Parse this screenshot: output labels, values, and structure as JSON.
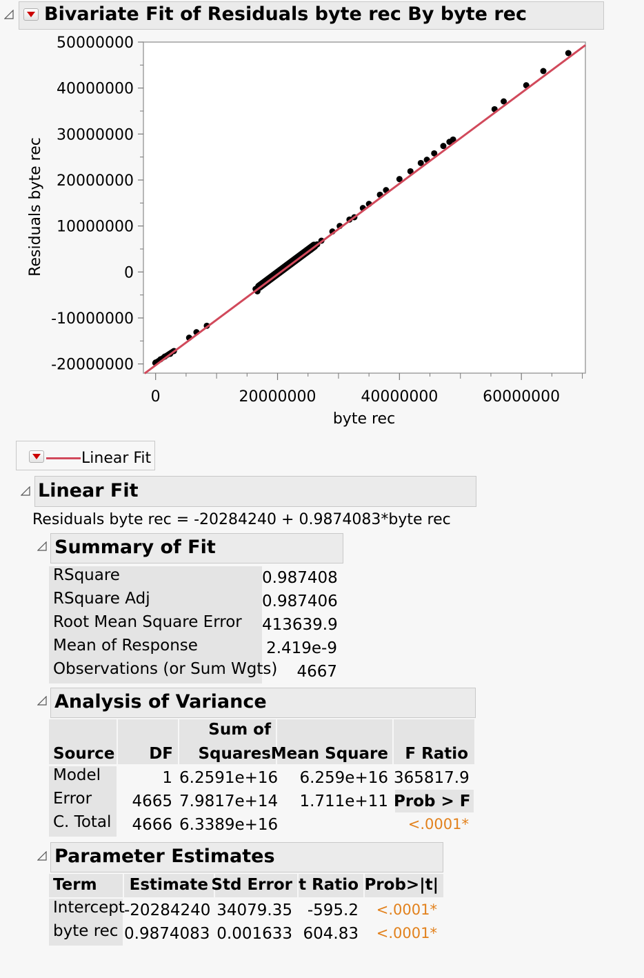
{
  "title": "Bivariate Fit of Residuals byte rec By byte rec",
  "chart_data": {
    "type": "scatter",
    "xlabel": "byte rec",
    "ylabel": "Residuals byte rec",
    "xlim": [
      -2000000,
      70500000
    ],
    "ylim": [
      -22000000,
      50000000
    ],
    "xticks": [
      0,
      20000000,
      40000000,
      60000000
    ],
    "xticklabels": [
      "0",
      "20000000",
      "40000000",
      "60000000"
    ],
    "yticks": [
      -20000000,
      -10000000,
      0,
      10000000,
      20000000,
      30000000,
      40000000,
      50000000
    ],
    "yticklabels": [
      "-20000000",
      "-10000000",
      "0",
      "10000000",
      "20000000",
      "30000000",
      "40000000",
      "50000000"
    ],
    "fit_line": {
      "intercept": -20284240,
      "slope": 0.9874083,
      "color": "#d1495b"
    },
    "points": [
      [
        0,
        -19700000
      ],
      [
        800000,
        -19000000
      ],
      [
        1500000,
        -18400000
      ],
      [
        2400000,
        -17800000
      ],
      [
        3000000,
        -17200000
      ],
      [
        5500000,
        -14300000
      ],
      [
        6700000,
        -13100000
      ],
      [
        8400000,
        -11700000
      ],
      [
        16400000,
        -3700000
      ],
      [
        16700000,
        -4200000
      ],
      [
        17500000,
        -2900000
      ],
      [
        18500000,
        -1900000
      ],
      [
        19500000,
        -800000
      ],
      [
        20500000,
        200000
      ],
      [
        21500000,
        1100000
      ],
      [
        22500000,
        2100000
      ],
      [
        23500000,
        3000000
      ],
      [
        24500000,
        4000000
      ],
      [
        25500000,
        4900000
      ],
      [
        26500000,
        6000000
      ],
      [
        27200000,
        6800000
      ],
      [
        29000000,
        8800000
      ],
      [
        30200000,
        10000000
      ],
      [
        31800000,
        11400000
      ],
      [
        32600000,
        11900000
      ],
      [
        34000000,
        13900000
      ],
      [
        35000000,
        14800000
      ],
      [
        36800000,
        16800000
      ],
      [
        37800000,
        17800000
      ],
      [
        40000000,
        20200000
      ],
      [
        41800000,
        21900000
      ],
      [
        43500000,
        23700000
      ],
      [
        44500000,
        24400000
      ],
      [
        45700000,
        25800000
      ],
      [
        47200000,
        27400000
      ],
      [
        48200000,
        28300000
      ],
      [
        48800000,
        28800000
      ],
      [
        55600000,
        35400000
      ],
      [
        57100000,
        37100000
      ],
      [
        60800000,
        40600000
      ],
      [
        63600000,
        43700000
      ],
      [
        67700000,
        47600000
      ]
    ],
    "dense_segment": {
      "x": [
        17000000,
        26000000
      ],
      "count": 4600
    }
  },
  "legend": {
    "label": "Linear Fit",
    "line_color": "#d1495b"
  },
  "linear_fit": {
    "title": "Linear Fit",
    "equation": "Residuals byte rec = -20284240 + 0.9874083*byte rec"
  },
  "summary_of_fit": {
    "title": "Summary of Fit",
    "rows": [
      {
        "label": "RSquare",
        "value": "0.987408"
      },
      {
        "label": "RSquare Adj",
        "value": "0.987406"
      },
      {
        "label": "Root Mean Square Error",
        "value": "413639.9"
      },
      {
        "label": "Mean of Response",
        "value": "2.419e-9"
      },
      {
        "label": "Observations (or Sum Wgts)",
        "value": "4667"
      }
    ]
  },
  "anova": {
    "title": "Analysis of Variance",
    "headers": {
      "source": "Source",
      "df": "DF",
      "ss_top": "Sum of",
      "ss_bottom": "Squares",
      "ms": "Mean Square",
      "f": "F Ratio"
    },
    "rows": [
      {
        "source": "Model",
        "df": "1",
        "ss": "6.2591e+16",
        "ms": "6.259e+16",
        "f": "365817.9"
      },
      {
        "source": "Error",
        "df": "4665",
        "ss": "7.9817e+14",
        "ms": "1.711e+11",
        "f": "Prob > F"
      },
      {
        "source": "C. Total",
        "df": "4666",
        "ss": "6.3389e+16",
        "ms": "",
        "f": "<.0001*"
      }
    ]
  },
  "parameter_estimates": {
    "title": "Parameter Estimates",
    "headers": {
      "term": "Term",
      "estimate": "Estimate",
      "stderr": "Std Error",
      "t": "t Ratio",
      "p": "Prob>|t|"
    },
    "rows": [
      {
        "term": "Intercept",
        "estimate": "-20284240",
        "stderr": "34079.35",
        "t": "-595.2",
        "p": "<.0001*"
      },
      {
        "term": "byte rec",
        "estimate": "0.9874083",
        "stderr": "0.001633",
        "t": "604.83",
        "p": "<.0001*"
      }
    ]
  },
  "colors": {
    "accent": "#d1495b",
    "significant": "#e2811c",
    "header_bg": "#ebebeb"
  }
}
